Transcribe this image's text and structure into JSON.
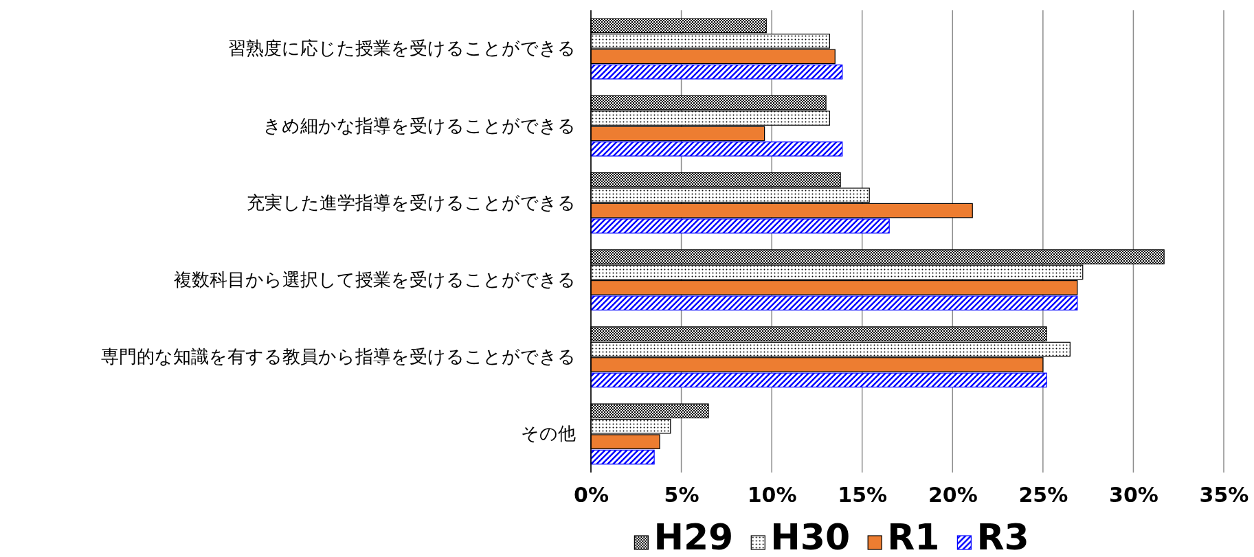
{
  "chart_data": {
    "type": "bar",
    "orientation": "horizontal",
    "categories": [
      "習熟度に応じた授業を受けることができる",
      "きめ細かな指導を受けることができる",
      "充実した進学指導を受けることができる",
      "複数科目から選択して授業を受けることができる",
      "専門的な知識を有する教員から指導を受けることができる",
      "その他"
    ],
    "series": [
      {
        "name": "H29",
        "color": "#000000",
        "values": [
          9.7,
          13.0,
          13.8,
          31.7,
          25.2,
          6.5
        ]
      },
      {
        "name": "H30",
        "color": "#000000",
        "values": [
          13.2,
          13.2,
          15.4,
          27.2,
          26.5,
          4.4
        ]
      },
      {
        "name": "R1",
        "color": "#ed7d31",
        "values": [
          13.5,
          9.6,
          21.1,
          26.9,
          25.0,
          3.8
        ]
      },
      {
        "name": "R3",
        "color": "#0000ff",
        "values": [
          13.9,
          13.9,
          16.5,
          26.9,
          25.2,
          3.5
        ]
      }
    ],
    "xlim": [
      0,
      35
    ],
    "xticks": [
      {
        "value": 0,
        "label": "0%"
      },
      {
        "value": 5,
        "label": "5%"
      },
      {
        "value": 10,
        "label": "10%"
      },
      {
        "value": 15,
        "label": "15%"
      },
      {
        "value": 20,
        "label": "20%"
      },
      {
        "value": 25,
        "label": "25%"
      },
      {
        "value": 30,
        "label": "30%"
      },
      {
        "value": 35,
        "label": "35%"
      }
    ],
    "grid": "x",
    "legend": "bottom"
  }
}
